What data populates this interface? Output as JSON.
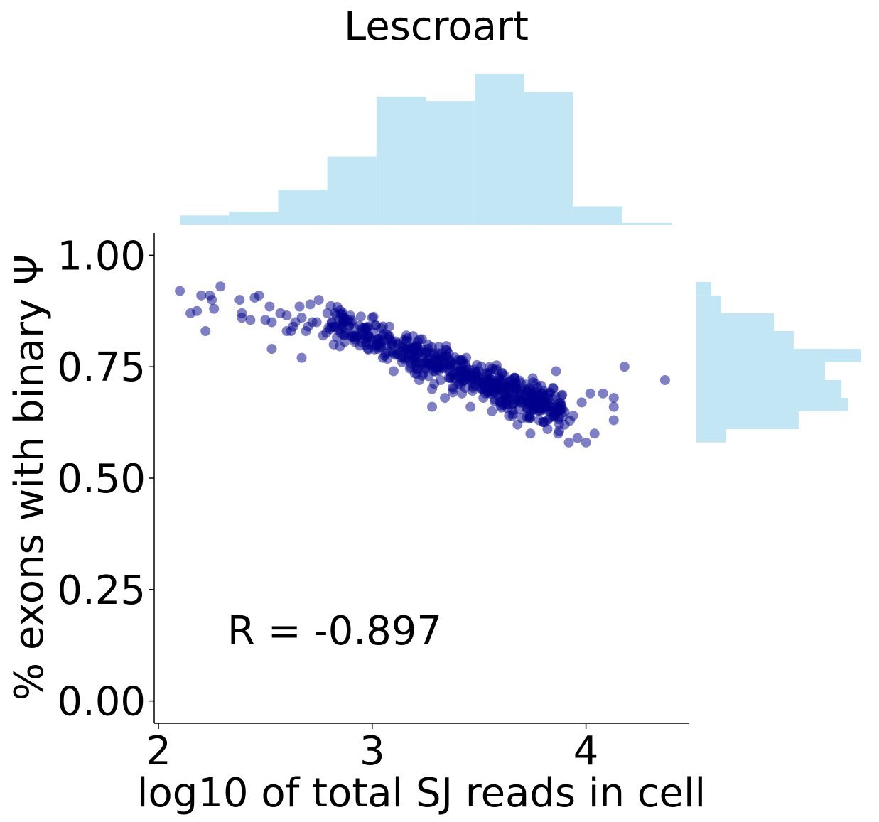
{
  "chart_data": {
    "type": "scatter",
    "title": "Lescroart",
    "xlabel": "log10 of total SJ reads in cell",
    "ylabel": "% exons with binary Ψ",
    "xlim": [
      1.98,
      4.48
    ],
    "ylim": [
      -0.05,
      1.05
    ],
    "x_ticks": [
      "2",
      "3",
      "4"
    ],
    "y_ticks": [
      "0.00",
      "0.25",
      "0.50",
      "0.75",
      "1.00"
    ],
    "annotation": "R = -0.897",
    "grid": false,
    "colors": {
      "points": "#00008b",
      "histogram": "#c2e6f4"
    },
    "points": [
      [
        2.1,
        0.92
      ],
      [
        2.15,
        0.87
      ],
      [
        2.18,
        0.875
      ],
      [
        2.2,
        0.91
      ],
      [
        2.22,
        0.83
      ],
      [
        2.24,
        0.91
      ],
      [
        2.25,
        0.9
      ],
      [
        2.26,
        0.88
      ],
      [
        2.29,
        0.93
      ],
      [
        2.38,
        0.9
      ],
      [
        2.39,
        0.86
      ],
      [
        2.39,
        0.87
      ],
      [
        2.43,
        0.855
      ],
      [
        2.45,
        0.905
      ],
      [
        2.47,
        0.91
      ],
      [
        2.5,
        0.855
      ],
      [
        2.52,
        0.885
      ],
      [
        2.53,
        0.85
      ],
      [
        2.53,
        0.79
      ],
      [
        2.57,
        0.87
      ],
      [
        2.6,
        0.865
      ],
      [
        2.6,
        0.83
      ],
      [
        2.62,
        0.83
      ],
      [
        2.63,
        0.84
      ],
      [
        2.64,
        0.85
      ],
      [
        2.66,
        0.885
      ],
      [
        2.67,
        0.86
      ],
      [
        2.67,
        0.77
      ],
      [
        2.69,
        0.83
      ],
      [
        2.7,
        0.84
      ],
      [
        2.71,
        0.89
      ],
      [
        2.72,
        0.85
      ],
      [
        2.74,
        0.85
      ],
      [
        2.75,
        0.9
      ],
      [
        2.77,
        0.82
      ],
      [
        2.79,
        0.87
      ],
      [
        2.82,
        0.8
      ],
      [
        2.85,
        0.845
      ],
      [
        2.87,
        0.86
      ],
      [
        2.89,
        0.84
      ],
      [
        2.92,
        0.82
      ],
      [
        2.95,
        0.83
      ],
      [
        2.98,
        0.79
      ],
      [
        3.0,
        0.86
      ],
      [
        3.02,
        0.8
      ],
      [
        3.05,
        0.77
      ],
      [
        3.08,
        0.84
      ],
      [
        3.1,
        0.74
      ],
      [
        3.12,
        0.8
      ],
      [
        3.14,
        0.76
      ],
      [
        3.16,
        0.82
      ],
      [
        3.18,
        0.75
      ],
      [
        3.2,
        0.79
      ],
      [
        3.22,
        0.72
      ],
      [
        3.24,
        0.77
      ],
      [
        3.26,
        0.8
      ],
      [
        3.28,
        0.7
      ],
      [
        3.28,
        0.66
      ],
      [
        3.3,
        0.75
      ],
      [
        3.32,
        0.72
      ],
      [
        3.34,
        0.68
      ],
      [
        3.36,
        0.74
      ],
      [
        3.38,
        0.7
      ],
      [
        3.4,
        0.73
      ],
      [
        3.42,
        0.69
      ],
      [
        3.44,
        0.77
      ],
      [
        3.46,
        0.66
      ],
      [
        3.48,
        0.71
      ],
      [
        3.5,
        0.74
      ],
      [
        3.52,
        0.68
      ],
      [
        3.54,
        0.72
      ],
      [
        3.56,
        0.65
      ],
      [
        3.58,
        0.7
      ],
      [
        3.6,
        0.67
      ],
      [
        3.62,
        0.73
      ],
      [
        3.64,
        0.64
      ],
      [
        3.66,
        0.69
      ],
      [
        3.68,
        0.62
      ],
      [
        3.7,
        0.67
      ],
      [
        3.72,
        0.71
      ],
      [
        3.74,
        0.6
      ],
      [
        3.76,
        0.66
      ],
      [
        3.78,
        0.63
      ],
      [
        3.8,
        0.69
      ],
      [
        3.82,
        0.61
      ],
      [
        3.84,
        0.65
      ],
      [
        3.86,
        0.74
      ],
      [
        3.87,
        0.6
      ],
      [
        3.9,
        0.62
      ],
      [
        3.92,
        0.58
      ],
      [
        3.94,
        0.64
      ],
      [
        3.96,
        0.59
      ],
      [
        3.98,
        0.67
      ],
      [
        4.0,
        0.58
      ],
      [
        4.02,
        0.69
      ],
      [
        4.04,
        0.6
      ],
      [
        4.08,
        0.69
      ],
      [
        4.13,
        0.68
      ],
      [
        4.13,
        0.66
      ],
      [
        4.13,
        0.63
      ],
      [
        4.18,
        0.75
      ],
      [
        4.37,
        0.72
      ]
    ],
    "cluster_x_range": [
      2.8,
      3.9
    ],
    "top_histogram": [
      {
        "bin": [
          2.1,
          2.33
        ],
        "height": 0.06
      },
      {
        "bin": [
          2.33,
          2.56
        ],
        "height": 0.085
      },
      {
        "bin": [
          2.56,
          2.79
        ],
        "height": 0.23
      },
      {
        "bin": [
          2.79,
          3.02
        ],
        "height": 0.45
      },
      {
        "bin": [
          3.02,
          3.25
        ],
        "height": 0.85
      },
      {
        "bin": [
          3.25,
          3.48
        ],
        "height": 0.82
      },
      {
        "bin": [
          3.48,
          3.71
        ],
        "height": 1.0
      },
      {
        "bin": [
          3.71,
          3.94
        ],
        "height": 0.88
      },
      {
        "bin": [
          3.94,
          4.17
        ],
        "height": 0.12
      },
      {
        "bin": [
          4.17,
          4.4
        ],
        "height": 0.01
      }
    ],
    "right_histogram": [
      {
        "bin": [
          0.58,
          0.61
        ],
        "width": 0.18
      },
      {
        "bin": [
          0.61,
          0.65
        ],
        "width": 0.62
      },
      {
        "bin": [
          0.65,
          0.68
        ],
        "width": 0.92
      },
      {
        "bin": [
          0.68,
          0.72
        ],
        "width": 0.88
      },
      {
        "bin": [
          0.72,
          0.76
        ],
        "width": 0.78
      },
      {
        "bin": [
          0.76,
          0.79
        ],
        "width": 1.0
      },
      {
        "bin": [
          0.79,
          0.83
        ],
        "width": 0.59
      },
      {
        "bin": [
          0.83,
          0.87
        ],
        "width": 0.47
      },
      {
        "bin": [
          0.87,
          0.91
        ],
        "width": 0.15
      },
      {
        "bin": [
          0.91,
          0.94
        ],
        "width": 0.09
      }
    ]
  }
}
